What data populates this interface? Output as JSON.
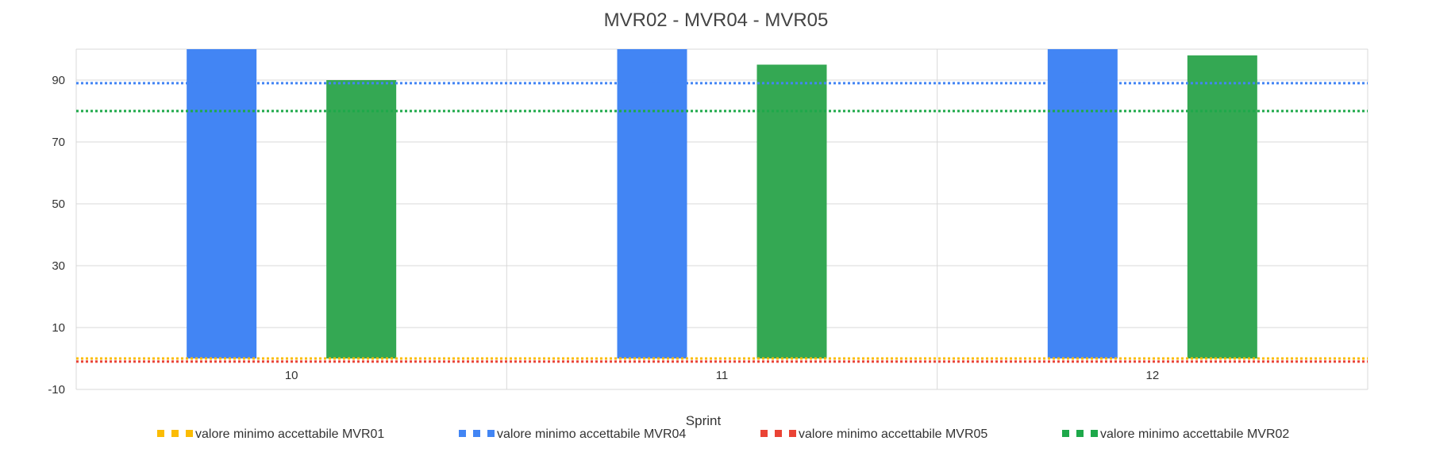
{
  "chart_data": {
    "type": "bar",
    "title": "MVR02 - MVR04 - MVR05",
    "xlabel": "Sprint",
    "ylabel": "",
    "categories": [
      "10",
      "11",
      "12"
    ],
    "ylim": [
      -10,
      100
    ],
    "y_ticks": [
      -10,
      10,
      30,
      50,
      70,
      90
    ],
    "grid": true,
    "series": [
      {
        "name": "MVR04",
        "color": "#4285f4",
        "values": [
          100,
          100,
          100
        ]
      },
      {
        "name": "MVR02",
        "color": "#34a853",
        "values": [
          90,
          95,
          98
        ]
      }
    ],
    "reference_lines": [
      {
        "name": "valore minimo accettabile MVR01",
        "value": 0,
        "color": "#fbbc04"
      },
      {
        "name": "valore minimo accettabile MVR04",
        "value": 89,
        "color": "#4285f4"
      },
      {
        "name": "valore minimo accettabile MVR05",
        "value": -1,
        "color": "#ea4335"
      },
      {
        "name": "valore minimo accettabile MVR02",
        "value": 80,
        "color": "#1ea84a"
      }
    ],
    "legend_position": "bottom"
  }
}
